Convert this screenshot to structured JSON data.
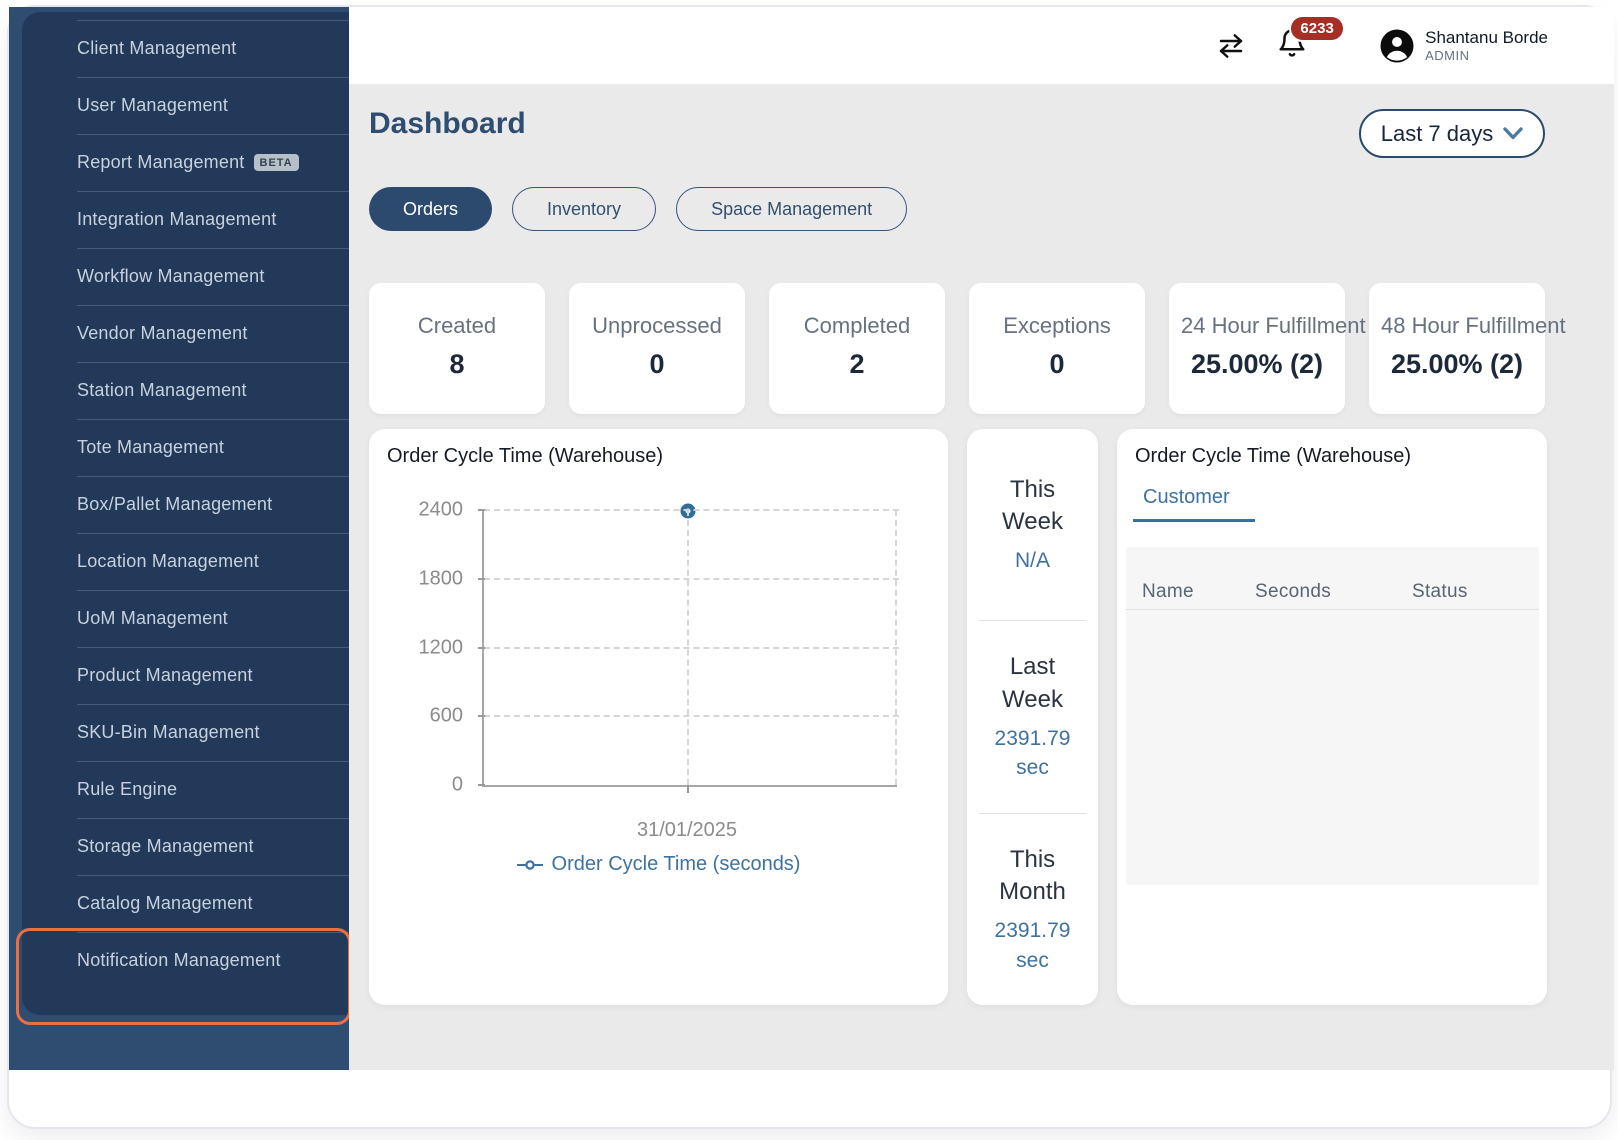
{
  "header": {
    "notification_count": "6233",
    "user_name": "Shantanu Borde",
    "user_role": "ADMIN"
  },
  "sidebar": {
    "items": [
      {
        "label": "Client Management"
      },
      {
        "label": "User Management"
      },
      {
        "label": "Report Management",
        "badge": "BETA"
      },
      {
        "label": "Integration Management"
      },
      {
        "label": "Workflow Management"
      },
      {
        "label": "Vendor Management"
      },
      {
        "label": "Station Management"
      },
      {
        "label": "Tote Management"
      },
      {
        "label": "Box/Pallet Management"
      },
      {
        "label": "Location Management"
      },
      {
        "label": "UoM Management"
      },
      {
        "label": "Product Management"
      },
      {
        "label": "SKU-Bin Management"
      },
      {
        "label": "Rule Engine"
      },
      {
        "label": "Storage Management"
      },
      {
        "label": "Catalog Management"
      },
      {
        "label": "Notification Management"
      }
    ],
    "highlighted_item": "Notification Management"
  },
  "page": {
    "title": "Dashboard",
    "date_filter": "Last 7 days"
  },
  "tabs": [
    {
      "label": "Orders",
      "active": true
    },
    {
      "label": "Inventory",
      "active": false
    },
    {
      "label": "Space Management",
      "active": false
    }
  ],
  "stat_cards": [
    {
      "label": "Created",
      "value": "8"
    },
    {
      "label": "Unprocessed",
      "value": "0"
    },
    {
      "label": "Completed",
      "value": "2"
    },
    {
      "label": "Exceptions",
      "value": "0"
    },
    {
      "label": "24 Hour Fulfillment",
      "value": "25.00% (2)"
    },
    {
      "label": "48 Hour Fulfillment",
      "value": "25.00% (2)"
    }
  ],
  "chart_card": {
    "title": "Order Cycle Time (Warehouse)",
    "legend": "Order Cycle Time (seconds)"
  },
  "chart_data": {
    "type": "line",
    "title": "Order Cycle Time (Warehouse)",
    "x": [
      "31/01/2025"
    ],
    "series": [
      {
        "name": "Order Cycle Time (seconds)",
        "values": [
          2391.79
        ]
      }
    ],
    "ylim": [
      0,
      2400
    ],
    "yticks": [
      0,
      600,
      1200,
      1800,
      2400
    ],
    "grid": "dashed",
    "legend_position": "bottom"
  },
  "summary_card": {
    "sections": [
      {
        "label": "This Week",
        "value": "N/A"
      },
      {
        "label": "Last Week",
        "value": "2391.79 sec"
      },
      {
        "label": "This Month",
        "value": "2391.79 sec"
      }
    ]
  },
  "right_card": {
    "title": "Order Cycle Time (Warehouse)",
    "tab": "Customer",
    "columns": [
      "Name",
      "Seconds",
      "Status"
    ],
    "rows": []
  },
  "colors": {
    "sidebar": "#22395a",
    "sidebar_outer": "#2f4d70",
    "navy_accent": "#2c4a6e",
    "steel_blue": "#3f72a0",
    "highlight_orange": "#ed6f3f",
    "badge_red": "#a52e25",
    "content_bg": "#ebeaea"
  }
}
